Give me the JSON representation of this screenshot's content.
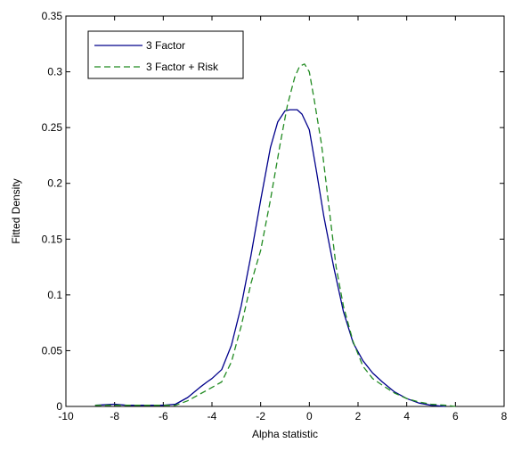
{
  "chart_data": {
    "type": "line",
    "title": "",
    "xlabel": "Alpha statistic",
    "ylabel": "Fitted Density",
    "xlim": [
      -10,
      8
    ],
    "ylim": [
      0,
      0.35
    ],
    "xticks": [
      -10,
      -8,
      -6,
      -4,
      -2,
      0,
      2,
      4,
      6,
      8
    ],
    "yticks": [
      0,
      0.05,
      0.1,
      0.15,
      0.2,
      0.25,
      0.3,
      0.35
    ],
    "xtick_labels": [
      "-10",
      "-8",
      "-6",
      "-4",
      "-2",
      "0",
      "2",
      "4",
      "6",
      "8"
    ],
    "ytick_labels": [
      "0",
      "0.05",
      "0.1",
      "0.15",
      "0.2",
      "0.25",
      "0.3",
      "0.35"
    ],
    "grid": false,
    "legend_position": "top-left",
    "series": [
      {
        "name": "3 Factor",
        "color": "#00008b",
        "style": "solid",
        "x": [
          -8.8,
          -8.0,
          -7.5,
          -7.0,
          -6.0,
          -5.5,
          -5.0,
          -4.5,
          -4.2,
          -4.0,
          -3.6,
          -3.2,
          -2.8,
          -2.4,
          -2.0,
          -1.6,
          -1.3,
          -1.0,
          -0.8,
          -0.5,
          -0.3,
          0.0,
          0.3,
          0.6,
          1.0,
          1.4,
          1.8,
          2.2,
          2.6,
          3.0,
          3.5,
          4.0,
          4.5,
          5.0,
          5.6
        ],
        "y": [
          0.001,
          0.002,
          0.001,
          0.001,
          0.001,
          0.002,
          0.008,
          0.017,
          0.022,
          0.025,
          0.033,
          0.055,
          0.09,
          0.135,
          0.185,
          0.232,
          0.255,
          0.265,
          0.266,
          0.266,
          0.262,
          0.248,
          0.21,
          0.17,
          0.125,
          0.085,
          0.057,
          0.041,
          0.03,
          0.022,
          0.013,
          0.007,
          0.003,
          0.001,
          0.0
        ]
      },
      {
        "name": "3 Factor + Risk",
        "color": "#228b22",
        "style": "dashed",
        "x": [
          -8.8,
          -8.0,
          -7.5,
          -7.0,
          -6.0,
          -5.5,
          -5.0,
          -4.5,
          -4.0,
          -3.6,
          -3.2,
          -2.8,
          -2.4,
          -2.0,
          -1.6,
          -1.2,
          -0.9,
          -0.6,
          -0.4,
          -0.2,
          0.0,
          0.2,
          0.5,
          0.8,
          1.1,
          1.4,
          1.8,
          2.2,
          2.6,
          3.0,
          3.5,
          4.0,
          4.5,
          5.0,
          5.6,
          6.0
        ],
        "y": [
          0.001,
          0.001,
          0.001,
          0.001,
          0.001,
          0.001,
          0.005,
          0.011,
          0.017,
          0.022,
          0.04,
          0.072,
          0.11,
          0.14,
          0.185,
          0.235,
          0.27,
          0.295,
          0.305,
          0.307,
          0.3,
          0.275,
          0.235,
          0.18,
          0.125,
          0.09,
          0.058,
          0.036,
          0.025,
          0.019,
          0.012,
          0.007,
          0.004,
          0.002,
          0.001,
          0.0
        ]
      }
    ]
  }
}
